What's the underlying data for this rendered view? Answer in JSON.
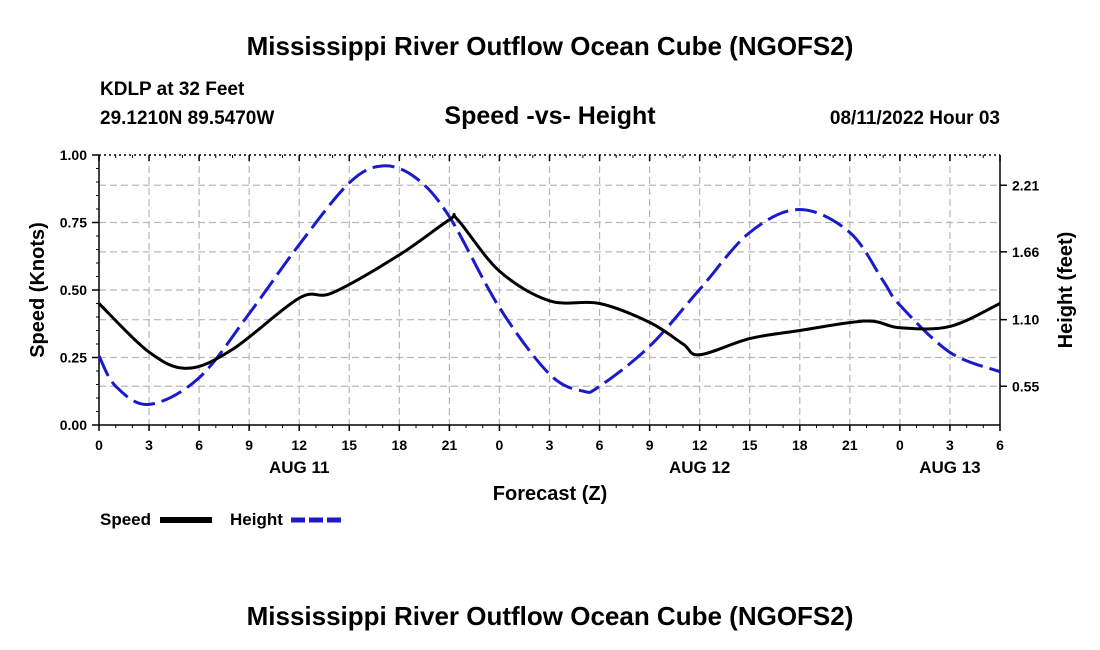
{
  "header": {
    "title": "Mississippi River Outflow Ocean Cube (NGOFS2)",
    "station": "KDLP at 32 Feet",
    "location": "29.1210N  89.5470W",
    "chart_subtitle": "Speed -vs- Height",
    "run_time": "08/11/2022 Hour 03"
  },
  "footer": {
    "title": "Mississippi River Outflow Ocean Cube (NGOFS2)"
  },
  "legend": {
    "items": [
      {
        "label": "Speed",
        "color": "#000000",
        "style": "solid"
      },
      {
        "label": "Height",
        "color": "#1a1acc",
        "style": "dashed"
      }
    ]
  },
  "chart_data": {
    "type": "line",
    "title": "Speed -vs- Height",
    "xlabel": "Forecast (Z)",
    "ylabel": "Speed (Knots)",
    "y2label": "Height (feet)",
    "x_hours_from_aug11_00z": [
      0,
      3,
      6,
      9,
      12,
      15,
      18,
      21,
      24,
      27,
      30,
      33,
      36,
      39,
      42,
      45,
      48,
      51,
      54
    ],
    "x_tick_labels": [
      "0",
      "3",
      "6",
      "9",
      "12",
      "15",
      "18",
      "21",
      "0",
      "3",
      "6",
      "9",
      "12",
      "15",
      "18",
      "21",
      "0",
      "3",
      "6"
    ],
    "date_labels": [
      {
        "label": "AUG 11",
        "hour": 12
      },
      {
        "label": "AUG 12",
        "hour": 36
      },
      {
        "label": "AUG 13",
        "hour": 51
      }
    ],
    "xlim": [
      0,
      54
    ],
    "ylim": [
      0,
      1.0
    ],
    "yticks": [
      0.0,
      0.25,
      0.5,
      0.75,
      1.0
    ],
    "ytick_labels": [
      "0.00",
      "0.25",
      "0.50",
      "0.75",
      "1.00"
    ],
    "y2lim": [
      0.23,
      2.46
    ],
    "y2ticks": [
      0.55,
      1.1,
      1.66,
      2.21
    ],
    "y2tick_labels": [
      "0.55",
      "1.10",
      "1.66",
      "2.21"
    ],
    "series": [
      {
        "name": "Speed",
        "axis": "left",
        "color": "#000000",
        "x": [
          0,
          3,
          5.3,
          8,
          12,
          14,
          18,
          21,
          21.5,
          24,
          27,
          30,
          33,
          35,
          36,
          39,
          42,
          46,
          48,
          51,
          54
        ],
        "values": [
          0.45,
          0.27,
          0.21,
          0.28,
          0.47,
          0.49,
          0.63,
          0.76,
          0.76,
          0.57,
          0.46,
          0.45,
          0.38,
          0.3,
          0.26,
          0.32,
          0.35,
          0.385,
          0.36,
          0.365,
          0.45
        ]
      },
      {
        "name": "Height",
        "axis": "right",
        "color": "#1a1acc",
        "x": [
          0,
          1,
          3,
          6,
          9,
          12,
          15,
          17,
          19,
          21,
          24,
          27,
          29,
          30,
          33,
          36,
          39,
          42,
          45,
          47,
          48,
          51,
          54
        ],
        "values": [
          0.8,
          0.55,
          0.4,
          0.62,
          1.15,
          1.72,
          2.23,
          2.37,
          2.27,
          1.95,
          1.2,
          0.65,
          0.51,
          0.55,
          0.88,
          1.35,
          1.82,
          2.01,
          1.82,
          1.42,
          1.22,
          0.83,
          0.67
        ]
      }
    ]
  }
}
